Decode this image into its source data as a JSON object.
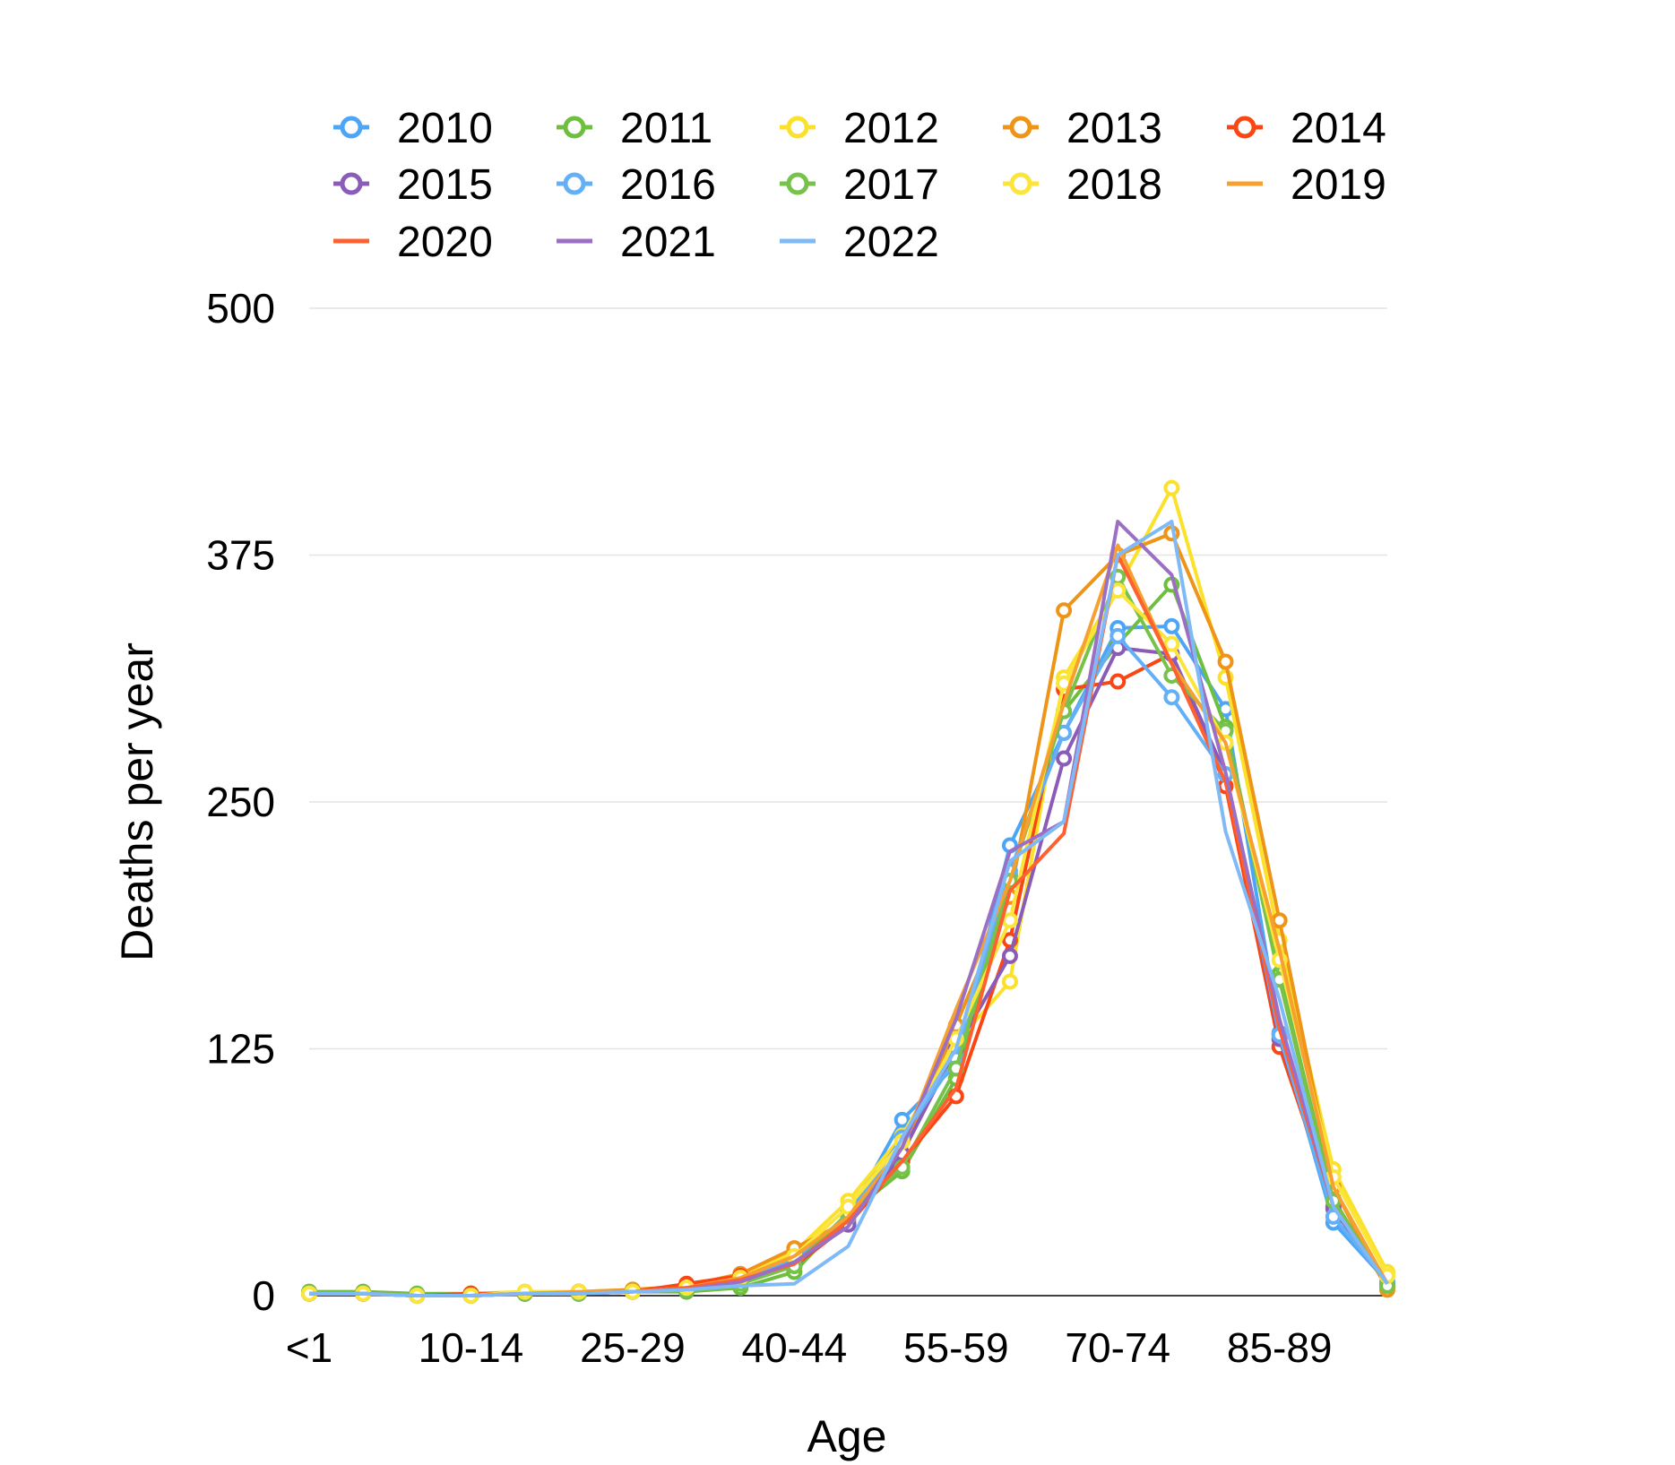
{
  "chart_data": {
    "type": "line",
    "title": "",
    "xlabel": "Age",
    "ylabel": "Deaths per year",
    "ylim": [
      0,
      500
    ],
    "y_ticks": [
      0,
      125,
      250,
      375,
      500
    ],
    "y_tick_labels": [
      "0",
      "125",
      "250",
      "375",
      "500"
    ],
    "grid": true,
    "legend_position": "top",
    "x_count": 21,
    "x_tick_labels": [
      {
        "index": 0,
        "label": "<1"
      },
      {
        "index": 3,
        "label": "10-14"
      },
      {
        "index": 6,
        "label": "25-29"
      },
      {
        "index": 9,
        "label": "40-44"
      },
      {
        "index": 12,
        "label": "55-59"
      },
      {
        "index": 15,
        "label": "70-74"
      },
      {
        "index": 18,
        "label": "85-89"
      }
    ],
    "series": [
      {
        "name": "2010",
        "color": "#4da6f5",
        "markers": true,
        "values": [
          1,
          1,
          0,
          0,
          1,
          1,
          2,
          3,
          8,
          18,
          40,
          89,
          117,
          228,
          285,
          338,
          339,
          297,
          133,
          37,
          7
        ]
      },
      {
        "name": "2011",
        "color": "#6fbf3f",
        "markers": true,
        "values": [
          2,
          2,
          1,
          1,
          1,
          2,
          2,
          2,
          4,
          12,
          41,
          63,
          110,
          213,
          296,
          330,
          360,
          288,
          163,
          49,
          4
        ]
      },
      {
        "name": "2012",
        "color": "#fbe12a",
        "markers": true,
        "values": [
          1,
          1,
          0,
          1,
          2,
          2,
          3,
          4,
          9,
          22,
          48,
          81,
          128,
          159,
          313,
          358,
          409,
          313,
          180,
          64,
          12
        ]
      },
      {
        "name": "2013",
        "color": "#ee9417",
        "markers": true,
        "values": [
          1,
          1,
          0,
          1,
          1,
          2,
          3,
          5,
          11,
          24,
          38,
          70,
          137,
          202,
          347,
          375,
          386,
          321,
          190,
          55,
          3
        ]
      },
      {
        "name": "2014",
        "color": "#fa4614",
        "markers": true,
        "values": [
          1,
          1,
          0,
          1,
          1,
          2,
          2,
          6,
          10,
          15,
          36,
          68,
          101,
          180,
          307,
          311,
          325,
          258,
          126,
          45,
          6
        ]
      },
      {
        "name": "2015",
        "color": "#8a5cb8",
        "markers": true,
        "values": [
          1,
          1,
          0,
          0,
          1,
          1,
          2,
          3,
          7,
          16,
          36,
          72,
          125,
          172,
          272,
          328,
          325,
          264,
          130,
          44,
          6
        ]
      },
      {
        "name": "2016",
        "color": "#64b0f6",
        "markers": true,
        "values": [
          1,
          1,
          0,
          0,
          1,
          1,
          2,
          3,
          7,
          19,
          40,
          80,
          120,
          215,
          285,
          334,
          303,
          264,
          132,
          40,
          7
        ]
      },
      {
        "name": "2017",
        "color": "#77c24a",
        "markers": true,
        "values": [
          1,
          1,
          0,
          0,
          1,
          1,
          2,
          3,
          6,
          15,
          42,
          65,
          115,
          210,
          296,
          364,
          314,
          286,
          160,
          48,
          5
        ]
      },
      {
        "name": "2018",
        "color": "#fce53a",
        "markers": true,
        "values": [
          1,
          1,
          0,
          0,
          2,
          2,
          2,
          4,
          9,
          20,
          45,
          78,
          130,
          190,
          310,
          357,
          330,
          280,
          170,
          60,
          10
        ]
      },
      {
        "name": "2019",
        "color": "#f5a030",
        "markers": false,
        "values": [
          1,
          1,
          0,
          0,
          1,
          2,
          2,
          4,
          9,
          20,
          40,
          75,
          145,
          210,
          300,
          380,
          320,
          280,
          175,
          55,
          6
        ]
      },
      {
        "name": "2020",
        "color": "#ff6030",
        "markers": false,
        "values": [
          1,
          1,
          0,
          0,
          1,
          1,
          2,
          4,
          8,
          16,
          38,
          68,
          105,
          205,
          234,
          375,
          320,
          260,
          135,
          45,
          6
        ]
      },
      {
        "name": "2021",
        "color": "#9b70c4",
        "markers": false,
        "values": [
          1,
          1,
          0,
          0,
          1,
          1,
          2,
          3,
          7,
          17,
          35,
          75,
          140,
          225,
          240,
          392,
          365,
          265,
          140,
          45,
          6
        ]
      },
      {
        "name": "2022",
        "color": "#7fbaf7",
        "markers": false,
        "values": [
          1,
          1,
          0,
          0,
          1,
          1,
          2,
          3,
          5,
          6,
          25,
          80,
          125,
          220,
          240,
          375,
          392,
          235,
          150,
          45,
          6
        ]
      }
    ]
  }
}
